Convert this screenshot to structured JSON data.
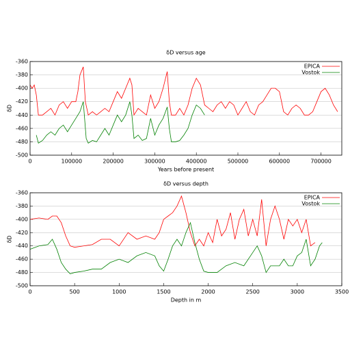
{
  "chart_data": [
    {
      "type": "line",
      "title": "δD versus age",
      "x_label": "Years before present",
      "y_label": "δD",
      "xlim": [
        0,
        750000
      ],
      "ylim": [
        -500,
        -360
      ],
      "xticks": [
        0,
        100000,
        200000,
        300000,
        400000,
        500000,
        600000,
        700000
      ],
      "yticks": [
        -360,
        -380,
        -400,
        -420,
        -440,
        -460,
        -480,
        -500
      ],
      "grid": true,
      "legend": "upper right",
      "series": [
        {
          "name": "EPICA",
          "color": "#ff0000",
          "x": [
            0,
            5000,
            10000,
            15000,
            20000,
            30000,
            40000,
            50000,
            60000,
            70000,
            80000,
            90000,
            100000,
            110000,
            115000,
            120000,
            128000,
            133000,
            140000,
            150000,
            160000,
            170000,
            180000,
            190000,
            200000,
            210000,
            220000,
            230000,
            240000,
            245000,
            250000,
            260000,
            270000,
            280000,
            290000,
            300000,
            310000,
            320000,
            330000,
            335000,
            340000,
            350000,
            360000,
            370000,
            380000,
            390000,
            400000,
            410000,
            420000,
            430000,
            440000,
            450000,
            460000,
            470000,
            480000,
            490000,
            500000,
            510000,
            520000,
            530000,
            540000,
            550000,
            560000,
            570000,
            580000,
            590000,
            600000,
            610000,
            620000,
            630000,
            640000,
            650000,
            660000,
            670000,
            680000,
            690000,
            700000,
            710000,
            720000,
            730000,
            740000
          ],
          "values": [
            -395,
            -400,
            -395,
            -410,
            -440,
            -440,
            -435,
            -430,
            -440,
            -425,
            -420,
            -430,
            -420,
            -420,
            -405,
            -380,
            -368,
            -420,
            -440,
            -435,
            -440,
            -435,
            -430,
            -435,
            -420,
            -405,
            -415,
            -400,
            -385,
            -395,
            -440,
            -430,
            -435,
            -440,
            -410,
            -430,
            -420,
            -400,
            -375,
            -420,
            -440,
            -440,
            -430,
            -440,
            -425,
            -400,
            -385,
            -395,
            -425,
            -430,
            -435,
            -425,
            -420,
            -430,
            -420,
            -425,
            -440,
            -430,
            -420,
            -435,
            -440,
            -425,
            -420,
            -410,
            -400,
            -400,
            -405,
            -435,
            -440,
            -430,
            -425,
            -430,
            -440,
            -440,
            -435,
            -420,
            -405,
            -400,
            -410,
            -425,
            -435
          ]
        },
        {
          "name": "Vostok",
          "color": "#008000",
          "x": [
            15000,
            20000,
            30000,
            40000,
            50000,
            60000,
            70000,
            80000,
            90000,
            100000,
            110000,
            120000,
            128000,
            135000,
            140000,
            150000,
            160000,
            170000,
            180000,
            190000,
            200000,
            210000,
            220000,
            230000,
            240000,
            245000,
            250000,
            260000,
            270000,
            280000,
            290000,
            300000,
            310000,
            320000,
            330000,
            335000,
            340000,
            350000,
            360000,
            370000,
            380000,
            390000,
            400000,
            410000,
            420000
          ],
          "values": [
            -470,
            -482,
            -478,
            -470,
            -465,
            -470,
            -460,
            -455,
            -465,
            -455,
            -445,
            -435,
            -420,
            -475,
            -482,
            -478,
            -480,
            -470,
            -460,
            -470,
            -455,
            -440,
            -450,
            -440,
            -420,
            -440,
            -475,
            -470,
            -478,
            -475,
            -445,
            -470,
            -455,
            -445,
            -428,
            -460,
            -480,
            -480,
            -478,
            -470,
            -460,
            -440,
            -425,
            -430,
            -440
          ]
        }
      ]
    },
    {
      "type": "line",
      "title": "δD versus depth",
      "x_label": "Depth in m",
      "y_label": "δD",
      "xlim": [
        0,
        3500
      ],
      "ylim": [
        -500,
        -360
      ],
      "xticks": [
        0,
        500,
        1000,
        1500,
        2000,
        2500,
        3000,
        3500
      ],
      "yticks": [
        -360,
        -380,
        -400,
        -420,
        -440,
        -460,
        -480,
        -500
      ],
      "grid": true,
      "legend": "upper right",
      "series": [
        {
          "name": "EPICA",
          "color": "#ff0000",
          "x": [
            0,
            100,
            200,
            250,
            300,
            350,
            400,
            450,
            500,
            600,
            700,
            800,
            900,
            1000,
            1100,
            1200,
            1300,
            1400,
            1450,
            1500,
            1550,
            1600,
            1650,
            1700,
            1750,
            1800,
            1850,
            1900,
            1950,
            2000,
            2050,
            2100,
            2150,
            2200,
            2250,
            2300,
            2350,
            2400,
            2450,
            2500,
            2550,
            2600,
            2650,
            2700,
            2750,
            2800,
            2850,
            2900,
            2950,
            3000,
            3050,
            3100,
            3150,
            3200
          ],
          "values": [
            -400,
            -398,
            -400,
            -395,
            -395,
            -405,
            -425,
            -440,
            -442,
            -440,
            -438,
            -430,
            -430,
            -440,
            -420,
            -430,
            -425,
            -430,
            -420,
            -400,
            -395,
            -390,
            -380,
            -365,
            -390,
            -420,
            -440,
            -430,
            -440,
            -420,
            -435,
            -400,
            -425,
            -415,
            -390,
            -430,
            -400,
            -385,
            -425,
            -400,
            -425,
            -370,
            -440,
            -400,
            -380,
            -400,
            -430,
            -400,
            -410,
            -400,
            -420,
            -400,
            -440,
            -435
          ]
        },
        {
          "name": "Vostok",
          "color": "#008000",
          "x": [
            0,
            100,
            200,
            250,
            300,
            350,
            400,
            450,
            500,
            600,
            700,
            800,
            900,
            1000,
            1100,
            1200,
            1300,
            1400,
            1450,
            1500,
            1550,
            1600,
            1650,
            1700,
            1750,
            1800,
            1850,
            1900,
            1950,
            2000,
            2100,
            2200,
            2300,
            2400,
            2500,
            2550,
            2600,
            2650,
            2700,
            2800,
            2850,
            2900,
            2950,
            3000,
            3050,
            3100,
            3150,
            3200,
            3250,
            3280
          ],
          "values": [
            -445,
            -440,
            -438,
            -430,
            -445,
            -465,
            -475,
            -482,
            -480,
            -478,
            -475,
            -475,
            -465,
            -460,
            -465,
            -455,
            -450,
            -455,
            -470,
            -478,
            -460,
            -440,
            -430,
            -440,
            -420,
            -405,
            -435,
            -460,
            -478,
            -480,
            -480,
            -470,
            -465,
            -470,
            -450,
            -440,
            -455,
            -480,
            -470,
            -470,
            -460,
            -470,
            -470,
            -455,
            -450,
            -430,
            -470,
            -460,
            -440,
            -435
          ]
        }
      ]
    }
  ]
}
